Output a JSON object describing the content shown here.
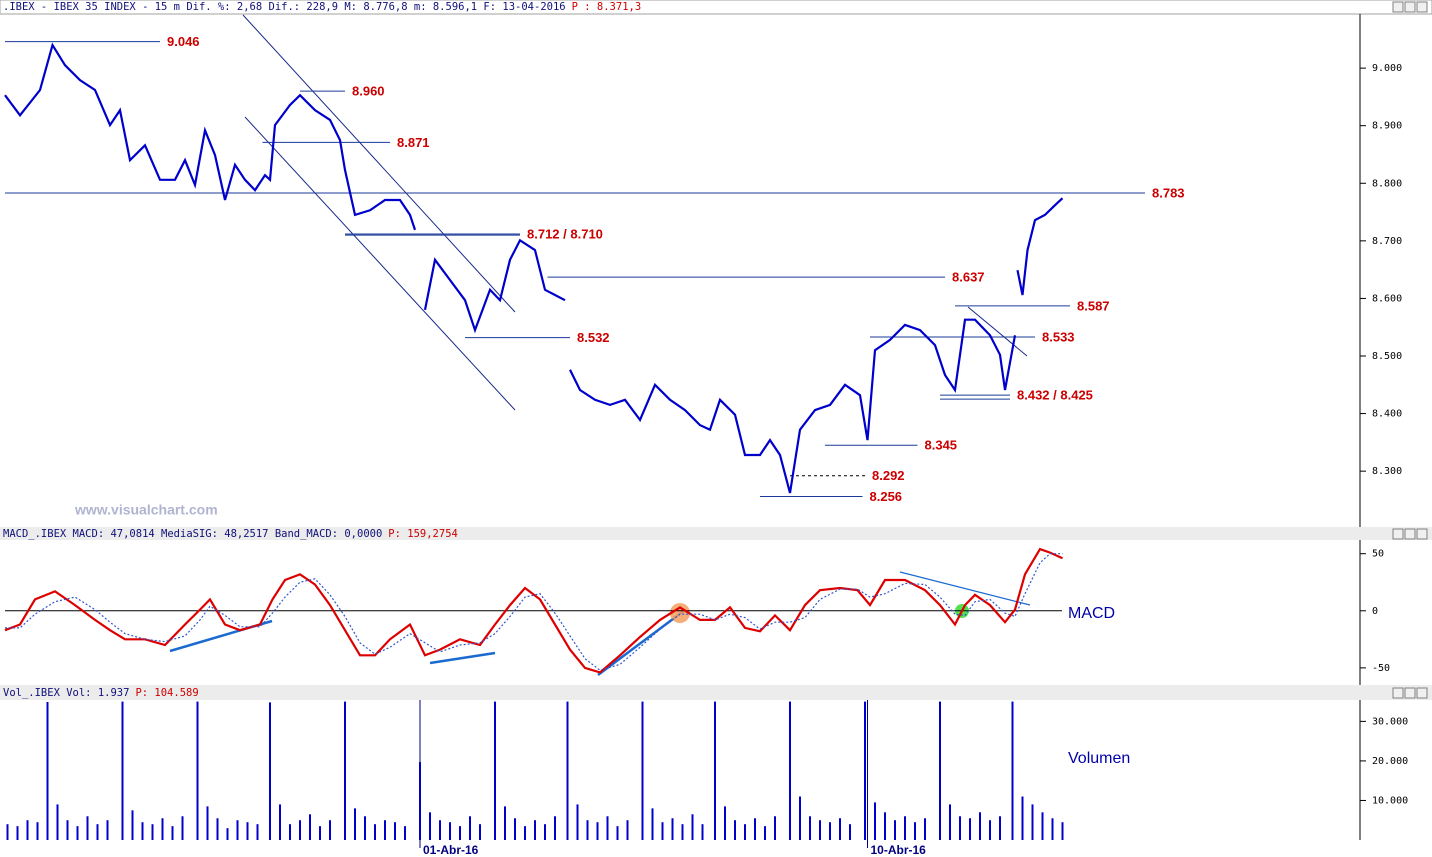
{
  "chart_data": [
    {
      "type": "line",
      "title": ".IBEX - IBEX 35 INDEX -  15 m Dif. %: 2,68 Dif.: 228,9 M: 8.776,8 m: 8.596,1 F: 13-04-2016",
      "title_highlight": "P : 8.371,3",
      "watermark": "www.visualchart.com",
      "xlim": [
        0,
        542
      ],
      "ylim": [
        8203,
        9094
      ],
      "yticks": [
        {
          "value": 8300,
          "label": "8.300"
        },
        {
          "value": 8400,
          "label": "8.400"
        },
        {
          "value": 8500,
          "label": "8.500"
        },
        {
          "value": 8600,
          "label": "8.600"
        },
        {
          "value": 8700,
          "label": "8.700"
        },
        {
          "value": 8800,
          "label": "8.800"
        },
        {
          "value": 8900,
          "label": "8.900"
        },
        {
          "value": 9000,
          "label": "9.000"
        }
      ],
      "x": [
        0,
        6,
        14,
        19,
        24,
        30,
        36,
        42,
        46,
        50,
        56,
        62,
        68,
        72,
        76,
        80,
        84,
        88,
        92,
        96,
        100,
        104,
        106,
        108,
        114,
        118,
        124,
        130,
        134,
        136,
        140,
        146,
        152,
        158,
        162,
        164,
        166,
        168,
        172,
        178,
        184,
        188,
        194,
        198,
        202,
        206,
        212,
        216,
        220,
        224,
        225,
        226,
        230,
        236,
        242,
        248,
        254,
        260,
        266,
        272,
        278,
        282,
        286,
        292,
        296,
        302,
        306,
        310,
        314,
        318,
        324,
        330,
        336,
        342,
        345,
        348,
        354,
        360,
        366,
        372,
        376,
        380,
        384,
        388,
        394,
        398,
        400,
        404,
        404.5,
        405,
        407,
        409,
        412,
        416,
        420,
        423
      ],
      "series": [
        {
          "name": "IBEX",
          "color": "#0000cc",
          "values": [
            8953,
            8918,
            8962,
            9040,
            9005,
            8979,
            8962,
            8901,
            8927,
            8840,
            8866,
            8806,
            8806,
            8840,
            8797,
            8892,
            8849,
            8771,
            8832,
            8806,
            8788,
            8814,
            8806,
            8901,
            8936,
            8953,
            8927,
            8910,
            8875,
            8823,
            8745,
            8753,
            8771,
            8771,
            8745,
            8719,
            null,
            8580,
            8667,
            8632,
            8597,
            8545,
            8615,
            8597,
            8667,
            8701,
            8684,
            8615,
            8606,
            8597,
            null,
            8476,
            8441,
            8424,
            8415,
            8424,
            8389,
            8450,
            8424,
            8406,
            8380,
            8372,
            8424,
            8398,
            8328,
            8328,
            8354,
            8328,
            8262,
            8372,
            8406,
            8415,
            8450,
            8432,
            8354,
            8510,
            8528,
            8554,
            8545,
            8519,
            8467,
            8441,
            8563,
            8563,
            8536,
            8502,
            8441,
            8536,
            null,
            8649,
            8606,
            8684,
            8736,
            8745,
            8762,
            8774
          ]
        }
      ],
      "levels": [
        {
          "label": "9.046",
          "values": [
            9046
          ],
          "from": 0,
          "to": 62
        },
        {
          "label": "8.960",
          "values": [
            8960
          ],
          "from": 118,
          "to": 136
        },
        {
          "label": "8.871",
          "values": [
            8871
          ],
          "from": 103,
          "to": 154
        },
        {
          "label": "8.783",
          "values": [
            8783
          ],
          "from": 0,
          "to": 456
        },
        {
          "label": "8.712 / 8.710",
          "values": [
            8712,
            8710
          ],
          "from": 136,
          "to": 206
        },
        {
          "label": "8.637",
          "values": [
            8637
          ],
          "from": 217,
          "to": 376
        },
        {
          "label": "8.587",
          "values": [
            8587
          ],
          "from": 380,
          "to": 426
        },
        {
          "label": "8.533",
          "values": [
            8533
          ],
          "from": 346,
          "to": 412
        },
        {
          "label": "8.532",
          "values": [
            8532
          ],
          "from": 184,
          "to": 226
        },
        {
          "label": "8.432 / 8.425",
          "values": [
            8432,
            8425
          ],
          "from": 374,
          "to": 402
        },
        {
          "label": "8.345",
          "values": [
            8345
          ],
          "from": 328,
          "to": 365
        },
        {
          "label": "8.292",
          "values": [
            8292
          ],
          "from": 314,
          "to": 344,
          "dashed": true
        },
        {
          "label": "8.256",
          "values": [
            8256
          ],
          "from": 302,
          "to": 343
        }
      ]
    },
    {
      "type": "line",
      "title": "MACD_.IBEX MACD: 47,0814 MediaSIG: 48,2517 Band_MACD: 0,0000",
      "title_highlight": "P: 159,2754",
      "label": "MACD",
      "xlim": [
        0,
        542
      ],
      "ylim": [
        -65,
        62
      ],
      "yticks": [
        -50,
        0,
        50
      ],
      "zero_line": true,
      "x": [
        0,
        6,
        12,
        20,
        28,
        36,
        42,
        48,
        56,
        64,
        72,
        78,
        82,
        88,
        94,
        102,
        107,
        112,
        118,
        124,
        130,
        136,
        142,
        148,
        154,
        162,
        168,
        174,
        182,
        190,
        196,
        202,
        208,
        214,
        220,
        226,
        232,
        238,
        246,
        254,
        262,
        270,
        278,
        284,
        290,
        296,
        302,
        308,
        314,
        320,
        326,
        334,
        341,
        346,
        352,
        360,
        368,
        374,
        380,
        384,
        388,
        394,
        400,
        404,
        408,
        414,
        418,
        423
      ],
      "series": [
        {
          "name": "MACD",
          "color": "#dd0000",
          "values": [
            -17,
            -12,
            10,
            17,
            5,
            -8,
            -17,
            -25,
            -25,
            -30,
            -12,
            1,
            10,
            -12,
            -17,
            -12,
            10,
            27,
            32,
            23,
            5,
            -17,
            -39,
            -39,
            -25,
            -12,
            -39,
            -34,
            -25,
            -30,
            -12,
            5,
            20,
            10,
            -12,
            -34,
            -50,
            -54,
            -39,
            -23,
            -8,
            3,
            -8,
            -8,
            3,
            -15,
            -18,
            -4,
            -17,
            5,
            18,
            20,
            18,
            5,
            27,
            27,
            18,
            5,
            -12,
            5,
            14,
            5,
            -10,
            1,
            32,
            54,
            51,
            46
          ]
        },
        {
          "name": "MediaSIG",
          "color": "#3355cc",
          "dotted": true,
          "values": [
            -15,
            -15,
            -3,
            8,
            12,
            1,
            -10,
            -20,
            -25,
            -27,
            -22,
            -8,
            4,
            -4,
            -14,
            -14,
            -2,
            12,
            25,
            28,
            14,
            -5,
            -28,
            -38,
            -32,
            -20,
            -28,
            -36,
            -30,
            -28,
            -20,
            -5,
            12,
            15,
            -2,
            -22,
            -42,
            -52,
            -47,
            -32,
            -16,
            -3,
            -3,
            -8,
            -3,
            -6,
            -16,
            -10,
            -10,
            -6,
            10,
            19,
            19,
            12,
            15,
            24,
            23,
            12,
            -3,
            -4,
            8,
            10,
            -2,
            -5,
            15,
            42,
            50,
            50
          ]
        }
      ]
    },
    {
      "type": "bar",
      "title": "Vol_.IBEX Vol: 1.937",
      "title_highlight": "P: 104.589",
      "label": "Volumen",
      "color": "#0000cc",
      "xlim": [
        0,
        542
      ],
      "ylim": [
        0,
        35400
      ],
      "yticks": [
        {
          "value": 10000,
          "label": "10.000"
        },
        {
          "value": 20000,
          "label": "20.000"
        },
        {
          "value": 30000,
          "label": "30.000"
        }
      ],
      "xticks": [
        {
          "value": 166,
          "label": "01-Abr-16"
        },
        {
          "value": 345,
          "label": "10-Abr-16"
        }
      ],
      "x": [
        1,
        5,
        9,
        13,
        17,
        21,
        25,
        29,
        33,
        37,
        41,
        47,
        51,
        55,
        59,
        63,
        67,
        71,
        77,
        81,
        85,
        89,
        93,
        97,
        101,
        106,
        110,
        114,
        118,
        122,
        126,
        130,
        136,
        140,
        144,
        148,
        152,
        156,
        160,
        166,
        170,
        174,
        178,
        182,
        186,
        190,
        196,
        200,
        204,
        208,
        212,
        216,
        220,
        225,
        229,
        233,
        237,
        241,
        245,
        249,
        255,
        259,
        263,
        267,
        271,
        275,
        279,
        284,
        288,
        292,
        296,
        300,
        304,
        308,
        314,
        318,
        322,
        326,
        330,
        334,
        338,
        344,
        348,
        352,
        356,
        360,
        364,
        368,
        374,
        378,
        382,
        386,
        390,
        394,
        398,
        403,
        407,
        411,
        415,
        419,
        423
      ],
      "values": [
        4000,
        3500,
        5000,
        4500,
        34900,
        9000,
        5000,
        3500,
        6000,
        4000,
        5000,
        35000,
        7500,
        4500,
        4000,
        5500,
        3500,
        6000,
        35000,
        8500,
        5500,
        3000,
        5000,
        4500,
        4000,
        34800,
        9000,
        4000,
        5000,
        6500,
        3500,
        5000,
        35000,
        8000,
        6000,
        4000,
        5000,
        4500,
        3500,
        19700,
        7000,
        5000,
        4500,
        3500,
        6000,
        4000,
        35000,
        8500,
        5500,
        3500,
        5000,
        4000,
        6000,
        35000,
        9000,
        5000,
        4500,
        6000,
        3500,
        5000,
        35000,
        8000,
        4500,
        5500,
        4000,
        6500,
        4000,
        35000,
        8500,
        5000,
        4000,
        5500,
        3500,
        6000,
        35000,
        11000,
        6000,
        5000,
        4500,
        5500,
        4000,
        35000,
        9500,
        7000,
        5000,
        6000,
        4500,
        5500,
        35000,
        9000,
        6000,
        5500,
        7000,
        5000,
        6000,
        35000,
        11000,
        9000,
        7000,
        5500,
        4500
      ]
    }
  ]
}
